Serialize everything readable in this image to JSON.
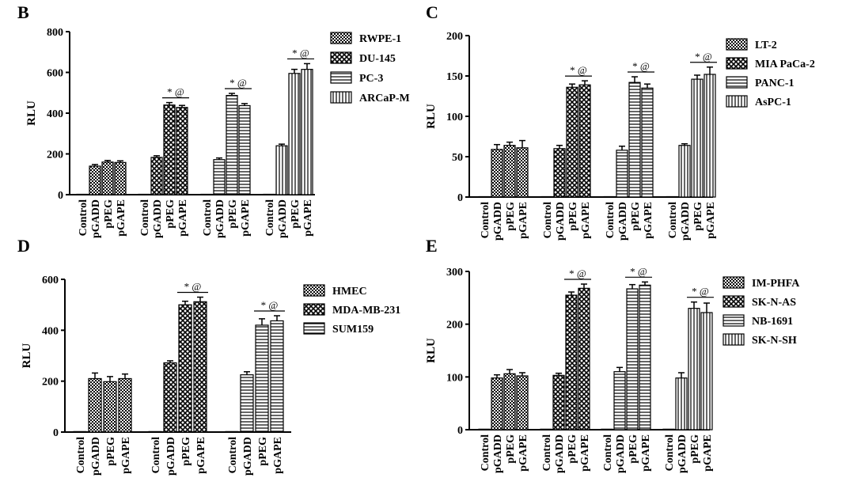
{
  "chart_data": [
    {
      "panel": "B",
      "type": "bar",
      "ylabel": "RLU",
      "ylim": [
        0,
        800
      ],
      "yticks": [
        0,
        200,
        400,
        600,
        800
      ],
      "categories": [
        "Control",
        "pGADD",
        "pPEG",
        "pGAPE"
      ],
      "legend_position": "right",
      "series": [
        {
          "name": "RWPE-1",
          "pattern": "checker",
          "values": [
            2,
            140,
            160,
            158
          ],
          "errors": [
            0,
            8,
            8,
            8
          ]
        },
        {
          "name": "DU-145",
          "pattern": "cross",
          "values": [
            2,
            183,
            440,
            428
          ],
          "errors": [
            0,
            8,
            12,
            10
          ]
        },
        {
          "name": "PC-3",
          "pattern": "hlines",
          "values": [
            2,
            172,
            487,
            437
          ],
          "errors": [
            0,
            8,
            10,
            10
          ]
        },
        {
          "name": "ARCaP-M",
          "pattern": "vlines",
          "values": [
            2,
            240,
            595,
            615
          ],
          "errors": [
            0,
            8,
            20,
            28
          ]
        }
      ],
      "annotation": "* @"
    },
    {
      "panel": "C",
      "type": "bar",
      "ylabel": "RLU",
      "ylim": [
        0,
        200
      ],
      "yticks": [
        0,
        50,
        100,
        150,
        200
      ],
      "categories": [
        "Control",
        "pGADD",
        "pPEG",
        "pGAPE"
      ],
      "legend_position": "right",
      "series": [
        {
          "name": "LT-2",
          "pattern": "checker",
          "values": [
            0.5,
            59,
            64,
            61
          ],
          "errors": [
            0,
            6,
            4,
            9
          ]
        },
        {
          "name": "MIA PaCa-2",
          "pattern": "cross",
          "values": [
            0.5,
            60,
            136,
            139
          ],
          "errors": [
            0,
            4,
            4,
            5
          ]
        },
        {
          "name": "PANC-1",
          "pattern": "hlines",
          "values": [
            0.5,
            58,
            142,
            135
          ],
          "errors": [
            0,
            5,
            7,
            5
          ]
        },
        {
          "name": "AsPC-1",
          "pattern": "vlines",
          "values": [
            0.5,
            64,
            146,
            152
          ],
          "errors": [
            0,
            2,
            5,
            9
          ]
        }
      ],
      "annotation": "* @"
    },
    {
      "panel": "D",
      "type": "bar",
      "ylabel": "RLU",
      "ylim": [
        0,
        600
      ],
      "yticks": [
        0,
        200,
        400,
        600
      ],
      "categories": [
        "Control",
        "pGADD",
        "pPEG",
        "pGAPE"
      ],
      "legend_position": "right",
      "series": [
        {
          "name": "HMEC",
          "pattern": "checker",
          "values": [
            2,
            210,
            198,
            210
          ],
          "errors": [
            0,
            22,
            20,
            18
          ]
        },
        {
          "name": "MDA-MB-231",
          "pattern": "cross",
          "values": [
            2,
            272,
            500,
            512
          ],
          "errors": [
            0,
            8,
            14,
            18
          ]
        },
        {
          "name": "SUM159",
          "pattern": "hlines",
          "values": [
            2,
            225,
            420,
            437
          ],
          "errors": [
            0,
            12,
            25,
            20
          ]
        }
      ],
      "annotation": "* @"
    },
    {
      "panel": "E",
      "type": "bar",
      "ylabel": "RLU",
      "ylim": [
        0,
        300
      ],
      "yticks": [
        0,
        100,
        200,
        300
      ],
      "categories": [
        "Control",
        "pGADD",
        "pPEG",
        "pGAPE"
      ],
      "legend_position": "right",
      "series": [
        {
          "name": "IM-PHFA",
          "pattern": "checker",
          "values": [
            1,
            98,
            106,
            102
          ],
          "errors": [
            0,
            6,
            8,
            6
          ]
        },
        {
          "name": "SK-N-AS",
          "pattern": "cross",
          "values": [
            1,
            103,
            255,
            268
          ],
          "errors": [
            0,
            4,
            6,
            8
          ]
        },
        {
          "name": "NB-1691",
          "pattern": "hlines",
          "values": [
            1,
            110,
            267,
            274
          ],
          "errors": [
            0,
            8,
            8,
            6
          ]
        },
        {
          "name": "SK-N-SH",
          "pattern": "vlines",
          "values": [
            1,
            98,
            230,
            222
          ],
          "errors": [
            0,
            10,
            12,
            18
          ]
        }
      ],
      "annotation": "* @"
    }
  ]
}
